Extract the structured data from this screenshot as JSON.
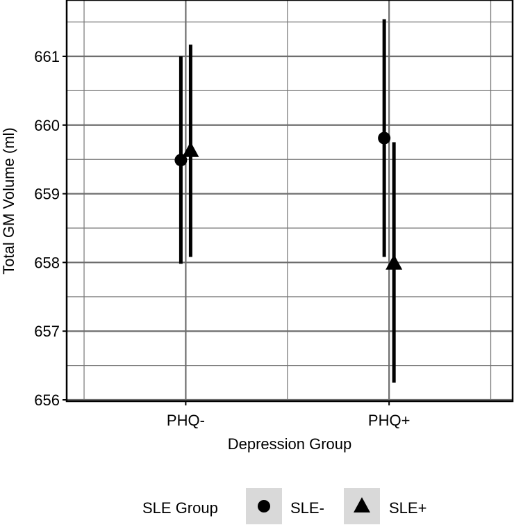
{
  "chart_data": {
    "type": "scatter",
    "xlabel": "Depression Group",
    "ylabel": "Total GM Volume (ml)",
    "categories": [
      "PHQ-",
      "PHQ+"
    ],
    "ylim": [
      655.98,
      661.82
    ],
    "yticks": [
      "656",
      "657",
      "658",
      "659",
      "660",
      "661"
    ],
    "grid": true,
    "legend_position": "bottom",
    "legend_title": "SLE Group",
    "series": [
      {
        "name": "SLE-",
        "marker": "circle",
        "values": [
          659.49,
          659.81
        ],
        "lower": [
          657.98,
          658.08
        ],
        "upper": [
          661.0,
          661.54
        ]
      },
      {
        "name": "SLE+",
        "marker": "triangle",
        "values": [
          659.62,
          657.98
        ],
        "lower": [
          658.08,
          656.25
        ],
        "upper": [
          661.17,
          659.75
        ]
      }
    ]
  }
}
